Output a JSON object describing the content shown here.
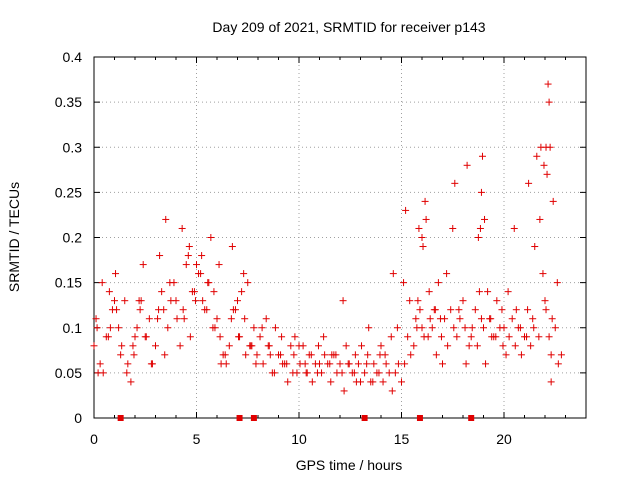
{
  "chart_data": {
    "type": "scatter",
    "title": "Day 209 of 2021, SRMTID for receiver p143",
    "xlabel": "GPS time / hours",
    "ylabel": "SRMTID / TECUs",
    "xlim": [
      0,
      24
    ],
    "ylim": [
      0,
      0.4
    ],
    "grid": true,
    "x_ticks": [
      0,
      5,
      10,
      15,
      20
    ],
    "x_tick_labels": [
      "0",
      "5",
      "10",
      "15",
      "20"
    ],
    "y_ticks": [
      0,
      0.05,
      0.1,
      0.15,
      0.2,
      0.25,
      0.3,
      0.35,
      0.4
    ],
    "y_tick_labels": [
      "0",
      "0.05",
      "0.1",
      "0.15",
      "0.2",
      "0.25",
      "0.3",
      "0.35",
      "0.4"
    ],
    "marker": "+",
    "color": "#e00000",
    "baseline_markers_x": [
      1.3,
      7.1,
      7.8,
      13.2,
      15.9,
      18.4
    ],
    "series": [
      {
        "name": "SRMTID",
        "x": [
          0.0,
          0.15,
          0.3,
          0.45,
          0.6,
          0.75,
          0.9,
          1.05,
          1.2,
          1.35,
          1.5,
          1.65,
          1.8,
          1.95,
          2.1,
          2.25,
          2.4,
          2.55,
          2.7,
          2.85,
          3.0,
          3.15,
          3.3,
          3.45,
          3.6,
          3.75,
          3.9,
          4.05,
          4.2,
          4.35,
          4.5,
          4.65,
          4.8,
          4.95,
          5.1,
          5.25,
          5.4,
          5.55,
          5.7,
          5.85,
          6.0,
          6.15,
          6.3,
          6.45,
          6.6,
          6.75,
          6.9,
          7.05,
          7.2,
          7.35,
          7.5,
          7.65,
          7.8,
          7.95,
          8.1,
          8.25,
          8.4,
          8.55,
          8.7,
          8.85,
          9.0,
          9.15,
          9.3,
          9.45,
          9.6,
          9.75,
          9.9,
          10.05,
          10.2,
          10.35,
          10.5,
          10.65,
          10.8,
          10.95,
          11.1,
          11.25,
          11.4,
          11.55,
          11.7,
          11.85,
          12.0,
          12.15,
          12.3,
          12.45,
          12.6,
          12.75,
          12.9,
          13.05,
          13.2,
          13.35,
          13.5,
          13.65,
          13.8,
          13.95,
          14.1,
          14.25,
          14.4,
          14.55,
          14.7,
          14.85,
          15.0,
          15.15,
          15.3,
          15.45,
          15.6,
          15.75,
          15.9,
          16.05,
          16.2,
          16.35,
          16.5,
          16.65,
          16.8,
          16.95,
          17.1,
          17.25,
          17.4,
          17.55,
          17.7,
          17.85,
          18.0,
          18.15,
          18.3,
          18.45,
          18.6,
          18.75,
          18.9,
          19.05,
          19.2,
          19.35,
          19.5,
          19.65,
          19.8,
          19.95,
          20.1,
          20.25,
          20.4,
          20.55,
          20.7,
          20.85,
          21.0,
          21.15,
          21.3,
          21.45,
          21.6,
          21.75,
          21.9,
          22.05,
          22.2,
          22.35,
          22.5,
          22.65,
          22.8,
          0.1,
          0.4,
          0.7,
          1.0,
          1.3,
          1.6,
          1.9,
          2.2,
          2.5,
          2.8,
          3.1,
          3.4,
          3.7,
          4.0,
          4.3,
          4.6,
          4.9,
          5.2,
          5.5,
          5.8,
          6.1,
          6.4,
          6.7,
          7.0,
          7.3,
          7.6,
          7.9,
          8.2,
          8.5,
          8.8,
          9.1,
          9.4,
          9.7,
          10.0,
          10.3,
          10.6,
          10.9,
          11.2,
          11.5,
          11.8,
          12.1,
          12.4,
          12.7,
          13.0,
          13.3,
          13.6,
          13.9,
          14.2,
          14.5,
          14.8,
          15.1,
          15.4,
          15.7,
          16.0,
          16.3,
          16.6,
          16.9,
          17.2,
          17.5,
          17.8,
          18.1,
          18.4,
          18.7,
          19.0,
          19.3,
          19.6,
          19.9,
          20.2,
          20.5,
          20.8,
          21.1,
          21.4,
          21.7,
          22.0,
          22.3,
          22.6,
          0.2,
          0.8,
          1.1,
          2.0,
          2.3,
          3.2,
          3.5,
          4.4,
          4.7,
          5.0,
          5.3,
          5.6,
          5.9,
          6.2,
          6.8,
          7.1,
          7.4,
          7.7,
          8.6,
          9.2,
          9.8,
          10.4,
          11.0,
          11.6,
          12.2,
          12.8,
          13.4,
          14.0,
          14.6,
          15.2,
          15.8,
          16.1,
          16.4,
          16.7,
          17.0,
          17.6,
          18.2,
          18.8,
          18.9,
          19.1,
          19.4,
          20.0,
          20.6,
          21.2,
          21.5,
          21.8,
          22.1,
          22.2,
          22.4,
          15.85,
          16.0,
          16.15,
          18.85,
          18.95,
          21.95,
          22.05,
          22.15,
          22.25,
          22.3
        ],
        "y": [
          0.08,
          0.1,
          0.06,
          0.05,
          0.09,
          0.14,
          0.12,
          0.16,
          0.1,
          0.08,
          0.13,
          0.06,
          0.04,
          0.07,
          0.1,
          0.12,
          0.17,
          0.09,
          0.11,
          0.06,
          0.08,
          0.12,
          0.14,
          0.07,
          0.1,
          0.13,
          0.15,
          0.11,
          0.08,
          0.12,
          0.17,
          0.19,
          0.14,
          0.13,
          0.16,
          0.18,
          0.12,
          0.15,
          0.2,
          0.14,
          0.11,
          0.09,
          0.07,
          0.06,
          0.08,
          0.19,
          0.12,
          0.09,
          0.14,
          0.11,
          0.15,
          0.08,
          0.1,
          0.07,
          0.09,
          0.06,
          0.11,
          0.08,
          0.05,
          0.1,
          0.07,
          0.09,
          0.06,
          0.04,
          0.08,
          0.07,
          0.05,
          0.06,
          0.08,
          0.05,
          0.07,
          0.04,
          0.06,
          0.08,
          0.05,
          0.07,
          0.06,
          0.04,
          0.07,
          0.05,
          0.06,
          0.13,
          0.08,
          0.06,
          0.05,
          0.07,
          0.06,
          0.08,
          0.05,
          0.07,
          0.04,
          0.06,
          0.05,
          0.07,
          0.04,
          0.06,
          0.05,
          0.03,
          0.05,
          0.06,
          0.04,
          0.06,
          0.09,
          0.07,
          0.08,
          0.1,
          0.12,
          0.19,
          0.22,
          0.14,
          0.1,
          0.12,
          0.15,
          0.09,
          0.11,
          0.08,
          0.12,
          0.1,
          0.09,
          0.11,
          0.13,
          0.06,
          0.08,
          0.1,
          0.12,
          0.2,
          0.25,
          0.22,
          0.14,
          0.11,
          0.09,
          0.13,
          0.1,
          0.08,
          0.07,
          0.09,
          0.11,
          0.08,
          0.1,
          0.07,
          0.09,
          0.12,
          0.08,
          0.1,
          0.29,
          0.22,
          0.16,
          0.12,
          0.09,
          0.11,
          0.1,
          0.06,
          0.07,
          0.11,
          0.15,
          0.09,
          0.13,
          0.07,
          0.05,
          0.08,
          0.13,
          0.09,
          0.06,
          0.11,
          0.12,
          0.15,
          0.13,
          0.21,
          0.18,
          0.14,
          0.16,
          0.12,
          0.1,
          0.17,
          0.07,
          0.11,
          0.13,
          0.16,
          0.08,
          0.06,
          0.1,
          0.08,
          0.05,
          0.07,
          0.06,
          0.05,
          0.08,
          0.06,
          0.07,
          0.05,
          0.09,
          0.06,
          0.07,
          0.05,
          0.06,
          0.05,
          0.04,
          0.06,
          0.04,
          0.05,
          0.07,
          0.09,
          0.1,
          0.15,
          0.13,
          0.11,
          0.1,
          0.09,
          0.12,
          0.11,
          0.16,
          0.21,
          0.12,
          0.1,
          0.09,
          0.08,
          0.1,
          0.11,
          0.09,
          0.12,
          0.14,
          0.21,
          0.1,
          0.09,
          0.11,
          0.09,
          0.13,
          0.07,
          0.15,
          0.05,
          0.1,
          0.12,
          0.09,
          0.13,
          0.18,
          0.22,
          0.11,
          0.09,
          0.17,
          0.13,
          0.15,
          0.1,
          0.06,
          0.12,
          0.09,
          0.07,
          0.08,
          0.07,
          0.06,
          0.09,
          0.05,
          0.06,
          0.07,
          0.03,
          0.04,
          0.1,
          0.08,
          0.16,
          0.23,
          0.13,
          0.09,
          0.11,
          0.07,
          0.06,
          0.26,
          0.28,
          0.14,
          0.11,
          0.06,
          0.09,
          0.1,
          0.12,
          0.26,
          0.19,
          0.3,
          0.27,
          0.35,
          0.24,
          0.21,
          0.2,
          0.24,
          0.21,
          0.29,
          0.28,
          0.3,
          0.37,
          0.3,
          0.04
        ]
      }
    ]
  }
}
